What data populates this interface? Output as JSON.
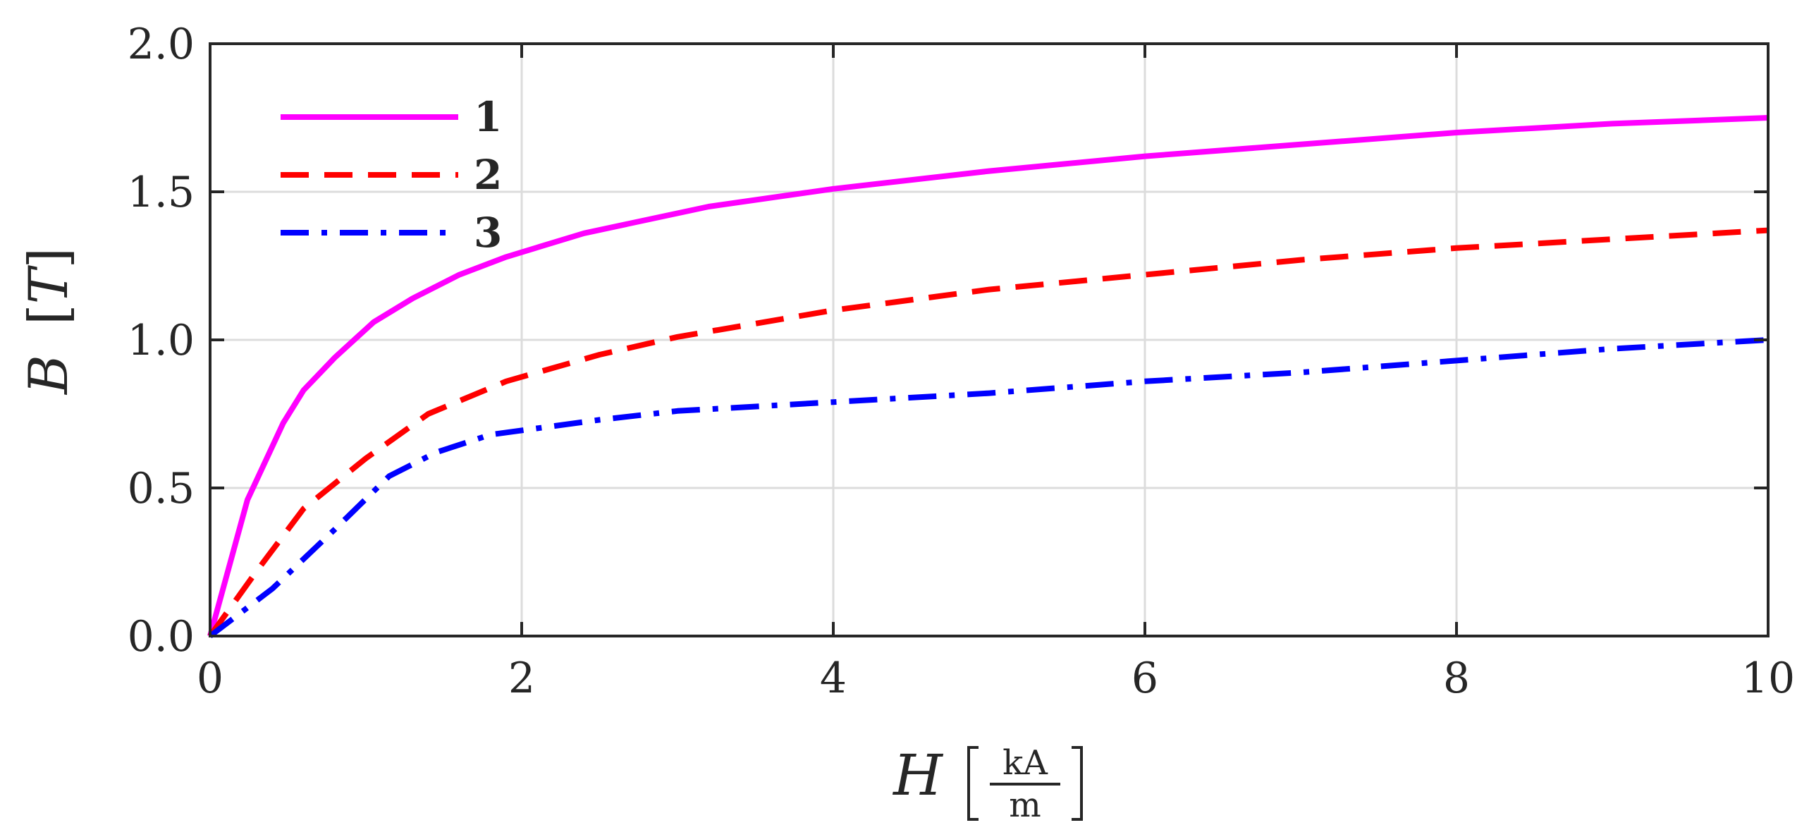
{
  "chart_data": {
    "type": "line",
    "title": "",
    "xlabel": {
      "symbol": "H",
      "unit_numerator": "kA",
      "unit_denominator": "m"
    },
    "ylabel": {
      "symbol": "B",
      "unit": "T"
    },
    "xlim": [
      0,
      10
    ],
    "ylim": [
      0,
      2
    ],
    "xticks": [
      0,
      2,
      4,
      6,
      8,
      10
    ],
    "xtick_labels": [
      "0",
      "2",
      "4",
      "6",
      "8",
      "10"
    ],
    "yticks": [
      0,
      0.5,
      1,
      1.5,
      2
    ],
    "ytick_labels": [
      "0.0",
      "0.5",
      "1.0",
      "1.5",
      "2.0"
    ],
    "grid": true,
    "legend_position": "top-left",
    "series": [
      {
        "name": "1",
        "color": "#ff00ff",
        "style": "solid",
        "x": [
          0,
          0.24,
          0.47,
          0.6,
          0.8,
          1.05,
          1.3,
          1.6,
          1.9,
          2.4,
          3.2,
          4.0,
          5.0,
          6.0,
          7.0,
          8.0,
          9.0,
          10.0
        ],
        "y": [
          0,
          0.46,
          0.72,
          0.83,
          0.94,
          1.06,
          1.14,
          1.22,
          1.28,
          1.36,
          1.45,
          1.51,
          1.57,
          1.62,
          1.66,
          1.7,
          1.73,
          1.75
        ]
      },
      {
        "name": "2",
        "color": "#ff0000",
        "style": "dashed",
        "x": [
          0,
          0.3,
          0.6,
          1.0,
          1.4,
          1.9,
          2.5,
          3.0,
          4.0,
          5.0,
          6.0,
          7.0,
          8.0,
          9.0,
          10.0
        ],
        "y": [
          0,
          0.22,
          0.43,
          0.6,
          0.75,
          0.86,
          0.95,
          1.01,
          1.1,
          1.17,
          1.22,
          1.27,
          1.31,
          1.34,
          1.37
        ]
      },
      {
        "name": "3",
        "color": "#0000ff",
        "style": "dashdot",
        "x": [
          0,
          0.4,
          0.8,
          1.15,
          1.45,
          1.8,
          2.5,
          3.0,
          4.0,
          5.0,
          6.0,
          7.0,
          8.0,
          9.0,
          10.0
        ],
        "y": [
          0,
          0.16,
          0.36,
          0.54,
          0.62,
          0.68,
          0.73,
          0.76,
          0.79,
          0.82,
          0.86,
          0.89,
          0.93,
          0.97,
          1.0
        ]
      }
    ]
  }
}
